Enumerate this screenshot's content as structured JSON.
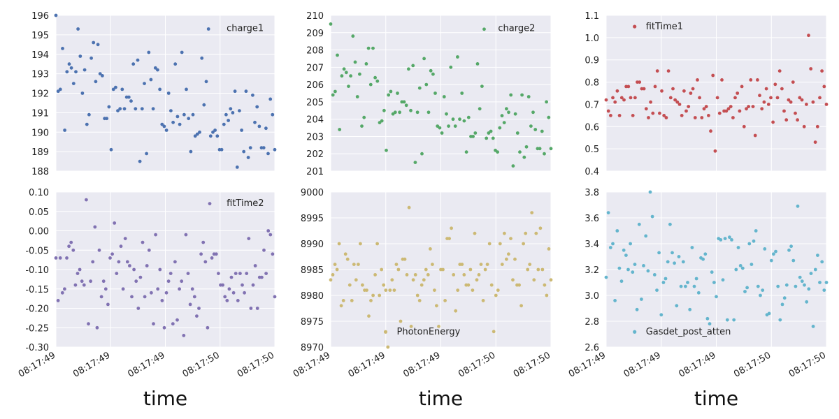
{
  "figure": {
    "xlabel": "time",
    "xtick_labels": [
      "08:17:49",
      "08:17:49",
      "08:17:49",
      "08:17:50",
      "08:17:50"
    ]
  },
  "colors": {
    "background": "#eaeaf2",
    "grid": "#ffffff"
  },
  "chart_data": [
    {
      "type": "scatter",
      "legend": "charge1",
      "legend_loc": "upper right",
      "color": "#4c72b0",
      "ylim": [
        188,
        196
      ],
      "yticks": [
        "188",
        "189",
        "190",
        "191",
        "192",
        "193",
        "194",
        "195",
        "196"
      ],
      "y": [
        196.0,
        192.1,
        192.2,
        194.3,
        190.1,
        193.1,
        193.5,
        193.3,
        192.5,
        193.1,
        195.3,
        193.9,
        192.0,
        193.2,
        190.4,
        190.9,
        193.8,
        194.6,
        192.6,
        194.5,
        193.0,
        192.9,
        190.7,
        190.7,
        191.3,
        189.1,
        192.2,
        192.3,
        191.1,
        191.2,
        192.2,
        191.2,
        191.8,
        191.8,
        191.6,
        193.5,
        191.2,
        193.7,
        188.5,
        191.2,
        192.5,
        188.9,
        194.1,
        192.7,
        191.2,
        193.3,
        193.2,
        192.2,
        190.4,
        190.3,
        190.1,
        192.0,
        191.1,
        190.5,
        193.5,
        190.8,
        190.4,
        194.1,
        190.9,
        192.2,
        190.7,
        189.0,
        190.9,
        189.8,
        189.9,
        190.0,
        193.8,
        191.4,
        192.6,
        195.3,
        189.8,
        190.0,
        190.1,
        189.8,
        189.1,
        189.1,
        190.4,
        190.9,
        190.6,
        191.2,
        191.0,
        192.1,
        188.2,
        191.1,
        190.1,
        189.0,
        192.1,
        188.7,
        189.2,
        191.9,
        190.5,
        191.3,
        190.3,
        189.2,
        189.2,
        190.2,
        188.9,
        191.7,
        190.9,
        189.1
      ]
    },
    {
      "type": "scatter",
      "legend": "charge2",
      "legend_loc": "upper right",
      "color": "#55a868",
      "ylim": [
        201,
        210
      ],
      "yticks": [
        "201",
        "202",
        "203",
        "204",
        "205",
        "206",
        "207",
        "208",
        "209",
        "210"
      ],
      "y": [
        209.5,
        205.4,
        205.6,
        207.7,
        203.4,
        206.5,
        206.9,
        206.7,
        205.9,
        206.5,
        208.8,
        207.3,
        205.3,
        206.6,
        203.6,
        204.1,
        207.2,
        208.1,
        206.0,
        208.1,
        206.4,
        206.2,
        203.8,
        203.9,
        204.5,
        202.2,
        205.4,
        205.6,
        204.3,
        204.4,
        205.5,
        204.4,
        205.0,
        205.0,
        204.8,
        206.9,
        204.5,
        207.1,
        201.5,
        204.4,
        205.8,
        202.0,
        207.5,
        206.0,
        204.4,
        206.8,
        206.6,
        205.5,
        203.6,
        203.5,
        203.2,
        205.3,
        204.3,
        203.6,
        207.0,
        204.0,
        203.6,
        207.6,
        204.0,
        205.5,
        203.9,
        202.1,
        204.1,
        203.0,
        203.0,
        203.2,
        207.2,
        204.6,
        205.9,
        209.2,
        202.9,
        203.2,
        203.3,
        202.9,
        202.2,
        202.1,
        203.5,
        204.2,
        203.8,
        204.6,
        204.4,
        205.4,
        201.3,
        204.3,
        203.2,
        202.1,
        205.4,
        201.8,
        202.4,
        205.3,
        203.6,
        204.4,
        203.4,
        202.3,
        202.3,
        203.3,
        202.0,
        205.0,
        204.1,
        202.3
      ]
    },
    {
      "type": "scatter",
      "legend": "fitTime1",
      "legend_loc": "upper left",
      "color": "#c44e52",
      "ylim": [
        0.4,
        1.1
      ],
      "yticks": [
        "0.4",
        "0.5",
        "0.6",
        "0.7",
        "0.8",
        "0.9",
        "1.0",
        "1.1"
      ],
      "y": [
        0.72,
        0.67,
        0.65,
        0.73,
        0.71,
        0.76,
        0.65,
        0.73,
        0.72,
        0.78,
        0.78,
        0.73,
        0.65,
        0.73,
        0.8,
        0.8,
        0.77,
        0.77,
        0.68,
        0.64,
        0.71,
        0.66,
        0.78,
        0.85,
        0.66,
        0.76,
        0.65,
        0.64,
        0.85,
        0.73,
        0.77,
        0.72,
        0.71,
        0.7,
        0.65,
        0.76,
        0.67,
        0.69,
        0.75,
        0.77,
        0.64,
        0.81,
        0.73,
        0.64,
        0.68,
        0.69,
        0.65,
        0.58,
        0.83,
        0.49,
        0.73,
        0.66,
        0.81,
        0.67,
        0.67,
        0.68,
        0.69,
        0.64,
        0.73,
        0.75,
        0.67,
        0.78,
        0.6,
        0.68,
        0.69,
        0.81,
        0.69,
        0.56,
        0.81,
        0.74,
        0.68,
        0.71,
        0.77,
        0.7,
        0.73,
        0.62,
        0.79,
        0.73,
        0.85,
        0.77,
        0.67,
        0.63,
        0.72,
        0.71,
        0.8,
        0.66,
        0.63,
        0.73,
        0.72,
        0.6,
        0.7,
        1.01,
        0.86,
        0.71,
        0.53,
        0.6,
        0.73,
        0.85,
        0.78,
        0.7
      ]
    },
    {
      "type": "scatter",
      "legend": "fitTime2",
      "legend_loc": "upper right",
      "color": "#8172b2",
      "ylim": [
        -0.3,
        0.1
      ],
      "yticks": [
        "-0.30",
        "-0.25",
        "-0.20",
        "-0.15",
        "-0.10",
        "-0.05",
        "0.00",
        "0.05",
        "0.10"
      ],
      "y": [
        -0.07,
        -0.18,
        -0.07,
        -0.16,
        -0.15,
        -0.07,
        -0.04,
        -0.03,
        -0.05,
        -0.14,
        -0.11,
        -0.1,
        -0.13,
        -0.14,
        0.08,
        -0.24,
        -0.13,
        -0.08,
        0.01,
        -0.25,
        -0.05,
        -0.17,
        -0.13,
        -0.15,
        -0.19,
        -0.07,
        -0.06,
        0.02,
        -0.11,
        -0.08,
        -0.04,
        -0.15,
        -0.02,
        -0.08,
        -0.09,
        -0.17,
        -0.1,
        -0.13,
        -0.2,
        -0.12,
        -0.03,
        -0.17,
        -0.09,
        -0.05,
        -0.16,
        -0.24,
        -0.01,
        -0.15,
        -0.1,
        -0.18,
        -0.25,
        -0.16,
        -0.13,
        -0.11,
        -0.24,
        -0.08,
        -0.23,
        -0.15,
        -0.13,
        -0.27,
        -0.01,
        -0.11,
        -0.19,
        -0.15,
        -0.17,
        -0.22,
        -0.2,
        -0.06,
        -0.03,
        -0.08,
        -0.25,
        0.07,
        -0.07,
        -0.06,
        -0.06,
        -0.11,
        -0.14,
        -0.14,
        -0.17,
        -0.18,
        -0.15,
        -0.12,
        -0.16,
        -0.11,
        -0.18,
        -0.11,
        -0.14,
        -0.16,
        -0.11,
        -0.02,
        -0.2,
        -0.14,
        -0.09,
        -0.2,
        -0.12,
        -0.12,
        -0.05,
        -0.11,
        0.0,
        -0.01,
        -0.06,
        -0.17
      ]
    },
    {
      "type": "scatter",
      "legend": "PhotonEnergy",
      "legend_loc": "lower center",
      "color": "#ccb974",
      "ylim": [
        8970,
        9000
      ],
      "yticks": [
        "8970",
        "8975",
        "8980",
        "8985",
        "8990",
        "8995",
        "9000"
      ],
      "y": [
        8983,
        8984,
        8986,
        8985,
        8990,
        8978,
        8979,
        8988,
        8987,
        8982,
        8979,
        8986,
        8983,
        8986,
        8990,
        8982,
        8981,
        8981,
        8976,
        8979,
        8980,
        8984,
        8990,
        8980,
        8985,
        8982,
        8981,
        8970,
        8981,
        8983,
        8981,
        8986,
        8985,
        8975,
        8987,
        8987,
        8984,
        8997,
        8974,
        8983,
        8984,
        8980,
        8979,
        8982,
        8983,
        8985,
        8984,
        8989,
        8986,
        8981,
        8978,
        8974,
        8985,
        8985,
        8979,
        8991,
        8991,
        8993,
        8984,
        8977,
        8981,
        8986,
        8986,
        8984,
        8982,
        8982,
        8985,
        8981,
        8992,
        8983,
        8984,
        8986,
        8979,
        8985,
        8986,
        8990,
        8982,
        8973,
        8980,
        8981,
        8990,
        8986,
        8992,
        8987,
        8988,
        8991,
        8983,
        8987,
        8982,
        8982,
        8978,
        8990,
        8992,
        8985,
        8986,
        8996,
        8983,
        8992,
        8985,
        8993,
        8985,
        8982,
        8980,
        8989,
        8983
      ]
    },
    {
      "type": "scatter",
      "legend": "Gasdet_post_atten",
      "legend_loc": "lower center",
      "color": "#64b5cd",
      "ylim": [
        2.6,
        3.8
      ],
      "yticks": [
        "2.6",
        "2.8",
        "3.0",
        "3.2",
        "3.4",
        "3.6",
        "3.8"
      ],
      "y": [
        3.14,
        3.64,
        3.37,
        3.4,
        2.96,
        3.5,
        3.21,
        3.11,
        3.35,
        3.31,
        3.2,
        3.4,
        3.18,
        3.24,
        2.89,
        3.55,
        2.97,
        3.23,
        3.46,
        3.19,
        3.8,
        3.61,
        3.16,
        3.04,
        3.33,
        2.85,
        3.1,
        3.13,
        3.26,
        3.55,
        3.33,
        3.25,
        2.92,
        3.3,
        3.07,
        3.26,
        3.07,
        3.1,
        2.89,
        3.37,
        3.07,
        3.13,
        3.02,
        3.29,
        3.28,
        3.32,
        2.82,
        2.78,
        3.18,
        3.1,
        2.99,
        3.44,
        3.43,
        3.12,
        3.44,
        2.81,
        3.45,
        3.43,
        2.81,
        3.2,
        3.37,
        3.23,
        3.21,
        3.03,
        3.06,
        3.4,
        3.24,
        3.42,
        3.5,
        3.07,
        3.0,
        3.04,
        3.36,
        2.85,
        2.86,
        3.27,
        3.32,
        3.34,
        3.07,
        2.81,
        2.93,
        2.98,
        3.08,
        3.35,
        3.38,
        3.27,
        3.07,
        3.69,
        3.14,
        3.11,
        3.08,
        2.95,
        3.05,
        3.17,
        2.76,
        3.2,
        3.31,
        3.1,
        3.26,
        3.04,
        3.1
      ]
    }
  ]
}
